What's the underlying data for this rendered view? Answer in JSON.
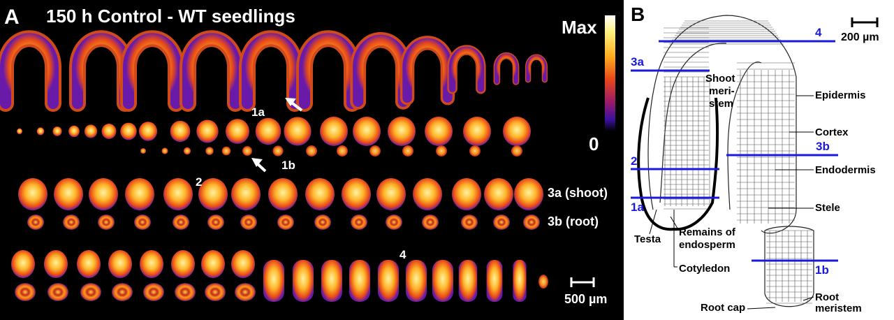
{
  "panel_a": {
    "letter": "A",
    "title": "150 h Control - WT seedlings",
    "colorbar": {
      "max_label": "Max",
      "min_label": "0"
    },
    "row_labels": {
      "shoot": "3a (shoot)",
      "root": "3b (root)"
    },
    "section_markers": {
      "m1a": "1a",
      "m1b": "1b",
      "m2": "2",
      "m4": "4"
    },
    "scale_bar": "500 µm",
    "colors": {
      "background": "#000000",
      "hot_low": "#5a1eb4",
      "hot_mid": "#e8501a",
      "hot_high": "#ffe066"
    }
  },
  "panel_b": {
    "letter": "B",
    "scale_bar": "200 µm",
    "section_lines": {
      "l4": "4",
      "l3a": "3a",
      "l3b": "3b",
      "l2": "2",
      "l1a": "1a",
      "l1b": "1b"
    },
    "labels": {
      "shoot_meristem_1": "Shoot",
      "shoot_meristem_2": "meri-",
      "shoot_meristem_3": "stem",
      "epidermis": "Epidermis",
      "cortex": "Cortex",
      "endodermis": "Endodermis",
      "stele": "Stele",
      "testa": "Testa",
      "endosperm_1": "Remains of",
      "endosperm_2": "endosperm",
      "cotyledon": "Cotyledon",
      "root_cap": "Root cap",
      "root_meristem_1": "Root",
      "root_meristem_2": "meristem"
    },
    "colors": {
      "section_line": "#1a1adc"
    }
  }
}
